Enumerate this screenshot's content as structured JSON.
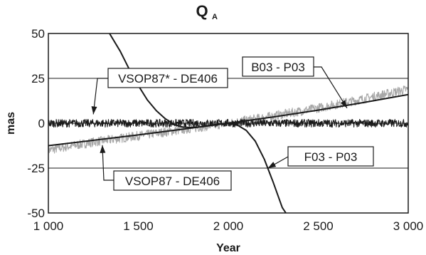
{
  "chart_data": {
    "type": "line",
    "title": "Q",
    "title_subscript": "A",
    "xlabel": "Year",
    "ylabel": "mas",
    "xlim": [
      1000,
      3000
    ],
    "ylim": [
      -50,
      50
    ],
    "x_ticks": [
      1000,
      1500,
      2000,
      2500,
      3000
    ],
    "x_tick_labels": [
      "1 000",
      "1 500",
      "2 000",
      "2 500",
      "3 000"
    ],
    "y_ticks": [
      -50,
      -25,
      0,
      25,
      50
    ],
    "y_tick_labels": [
      "-50",
      "-25",
      "0",
      "25",
      "50"
    ],
    "grid": "horizontal",
    "series": [
      {
        "name": "VSOP87 - DE406",
        "color": "#a8a8a8",
        "style": "noisy",
        "x": [
          1000,
          1250,
          1500,
          1750,
          2000,
          2250,
          2500,
          2750,
          3000
        ],
        "y": [
          -15,
          -10.5,
          -7,
          -3.5,
          0,
          4,
          8.5,
          13.5,
          19
        ]
      },
      {
        "name": "VSOP87* - DE406",
        "color": "#1a1a1a",
        "style": "noisy",
        "x": [
          1000,
          1500,
          2000,
          2500,
          3000
        ],
        "y": [
          0,
          0,
          0,
          0,
          0
        ]
      },
      {
        "name": "B03 - P03",
        "color": "#1a1a1a",
        "style": "smooth",
        "x": [
          1000,
          1250,
          1500,
          1750,
          2000,
          2250,
          2500,
          2750,
          3000
        ],
        "y": [
          -12.5,
          -9.5,
          -6.5,
          -3.3,
          0,
          3.5,
          7.3,
          11.5,
          16
        ]
      },
      {
        "name": "F03 - P03",
        "color": "#1a1a1a",
        "style": "smooth",
        "x": [
          1340,
          1400,
          1450,
          1500,
          1550,
          1600,
          1650,
          1700,
          1750,
          1800,
          1850,
          1900,
          1950,
          2000,
          2050,
          2100,
          2150,
          2200,
          2250,
          2300,
          2320
        ],
        "y": [
          50,
          40,
          30,
          21,
          13,
          7,
          2.5,
          -0.8,
          -2.2,
          -2.4,
          -2,
          -1.2,
          -0.4,
          0,
          -1,
          -4,
          -10,
          -20,
          -33,
          -47,
          -50
        ]
      }
    ],
    "callouts": [
      {
        "label": "VSOP87* - DE406",
        "series": "VSOP87* - DE406",
        "target": [
          1250,
          1
        ]
      },
      {
        "label": "B03 - P03",
        "series": "B03 - P03",
        "target": [
          2660,
          10
        ]
      },
      {
        "label": "F03 - P03",
        "series": "F03 - P03",
        "target": [
          2220,
          -25
        ]
      },
      {
        "label": "VSOP87 - DE406",
        "series": "VSOP87 - DE406",
        "target": [
          1300,
          -9
        ]
      }
    ]
  }
}
